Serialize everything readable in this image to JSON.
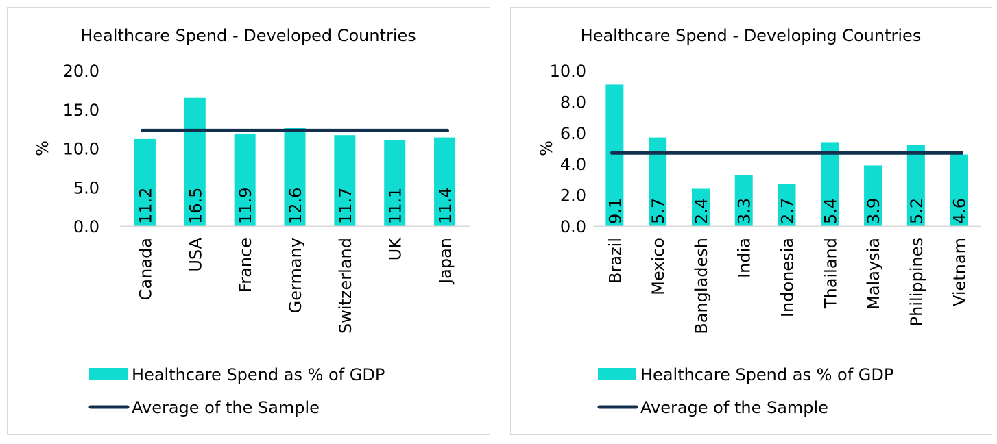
{
  "chart_data": [
    {
      "type": "bar",
      "title": "Healthcare Spend - Developed Countries",
      "ylabel": "%",
      "xlabel": "",
      "ylim": [
        0,
        20
      ],
      "yticks": [
        "0.0",
        "5.0",
        "10.0",
        "15.0",
        "20.0"
      ],
      "categories": [
        "Canada",
        "USA",
        "France",
        "Germany",
        "Switzerland",
        "UK",
        "Japan"
      ],
      "series": [
        {
          "name": "Healthcare Spend as % of GDP",
          "kind": "bar",
          "color": "#10DCD2",
          "values": [
            11.2,
            16.5,
            11.9,
            12.6,
            11.7,
            11.1,
            11.4
          ],
          "labels": [
            "11.2",
            "16.5",
            "11.9",
            "12.6",
            "11.7",
            "11.1",
            "11.4"
          ]
        },
        {
          "name": "Average of the Sample",
          "kind": "line",
          "color": "#14304F",
          "value": 12.3
        }
      ],
      "legend": "bottom"
    },
    {
      "type": "bar",
      "title": "Healthcare Spend - Developing Countries",
      "ylabel": "%",
      "xlabel": "",
      "ylim": [
        0,
        10
      ],
      "yticks": [
        "0.0",
        "2.0",
        "4.0",
        "6.0",
        "8.0",
        "10.0"
      ],
      "categories": [
        "Brazil",
        "Mexico",
        "Bangladesh",
        "India",
        "Indonesia",
        "Thailand",
        "Malaysia",
        "Philippines",
        "Vietnam"
      ],
      "series": [
        {
          "name": "Healthcare Spend as % of GDP",
          "kind": "bar",
          "color": "#10DCD2",
          "values": [
            9.1,
            5.7,
            2.4,
            3.3,
            2.7,
            5.4,
            3.9,
            5.2,
            4.6
          ],
          "labels": [
            "9.1",
            "5.7",
            "2.4",
            "3.3",
            "2.7",
            "5.4",
            "3.9",
            "5.2",
            "4.6"
          ]
        },
        {
          "name": "Average of the Sample",
          "kind": "line",
          "color": "#14304F",
          "value": 4.7
        }
      ],
      "legend": "bottom"
    }
  ]
}
